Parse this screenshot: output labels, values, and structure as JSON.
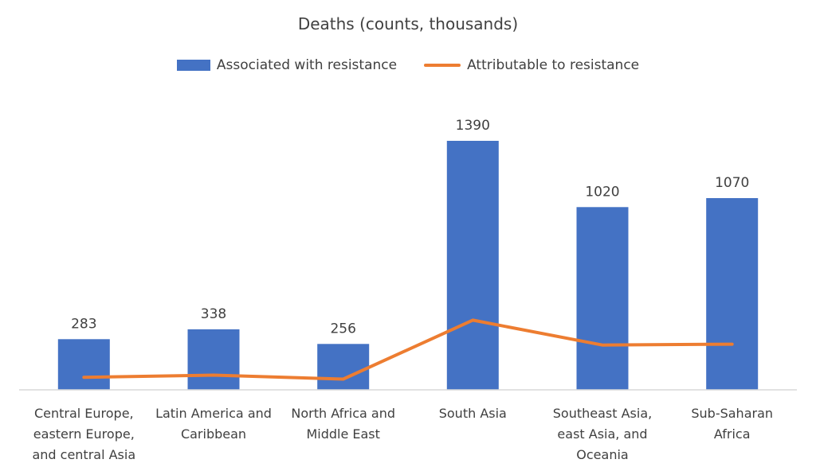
{
  "chart_data": {
    "type": "bar",
    "title": "Deaths (counts, thousands)",
    "xlabel": "",
    "ylabel": "",
    "grid": false,
    "legend_position": "top",
    "ylim": [
      0,
      1550
    ],
    "categories": [
      [
        "Central Europe,",
        "eastern Europe,",
        "and central Asia"
      ],
      [
        "Latin America and",
        "Caribbean"
      ],
      [
        "North Africa and",
        "Middle East"
      ],
      [
        "South Asia"
      ],
      [
        "Southeast Asia,",
        "east Asia, and",
        "Oceania"
      ],
      [
        "Sub-Saharan",
        "Africa"
      ]
    ],
    "series": [
      {
        "name": "Associated with resistance",
        "type": "bar",
        "color": "#4472c4",
        "values": [
          283,
          338,
          256,
          1390,
          1020,
          1070
        ],
        "data_labels": [
          "283",
          "338",
          "256",
          "1390",
          "1020",
          "1070"
        ]
      },
      {
        "name": "Attributable to resistance",
        "type": "line",
        "color": "#ed7d31",
        "values": [
          70,
          82,
          60,
          389,
          250,
          255
        ]
      }
    ]
  }
}
